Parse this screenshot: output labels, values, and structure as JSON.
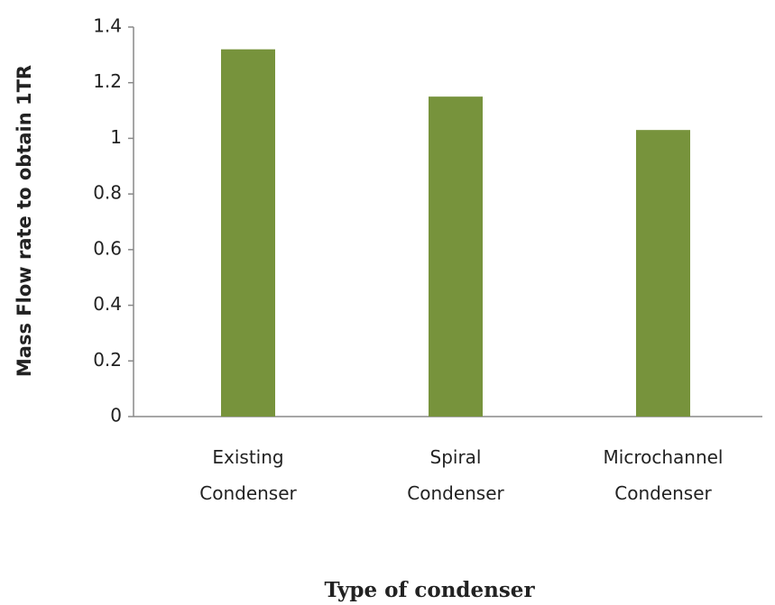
{
  "chart_data": {
    "type": "bar",
    "x_label": "Type of condenser",
    "y_label": "Mass Flow rate to obtain 1TR",
    "categories": [
      "Existing Condenser",
      "Spiral Condenser",
      "Microchannel Condenser"
    ],
    "values": [
      1.32,
      1.15,
      1.03
    ],
    "color": "#77933c",
    "ylim": [
      0,
      1.4
    ],
    "yticks": [
      0,
      0.2,
      0.4,
      0.6,
      0.8,
      1,
      1.2,
      1.4
    ],
    "grid": false
  }
}
